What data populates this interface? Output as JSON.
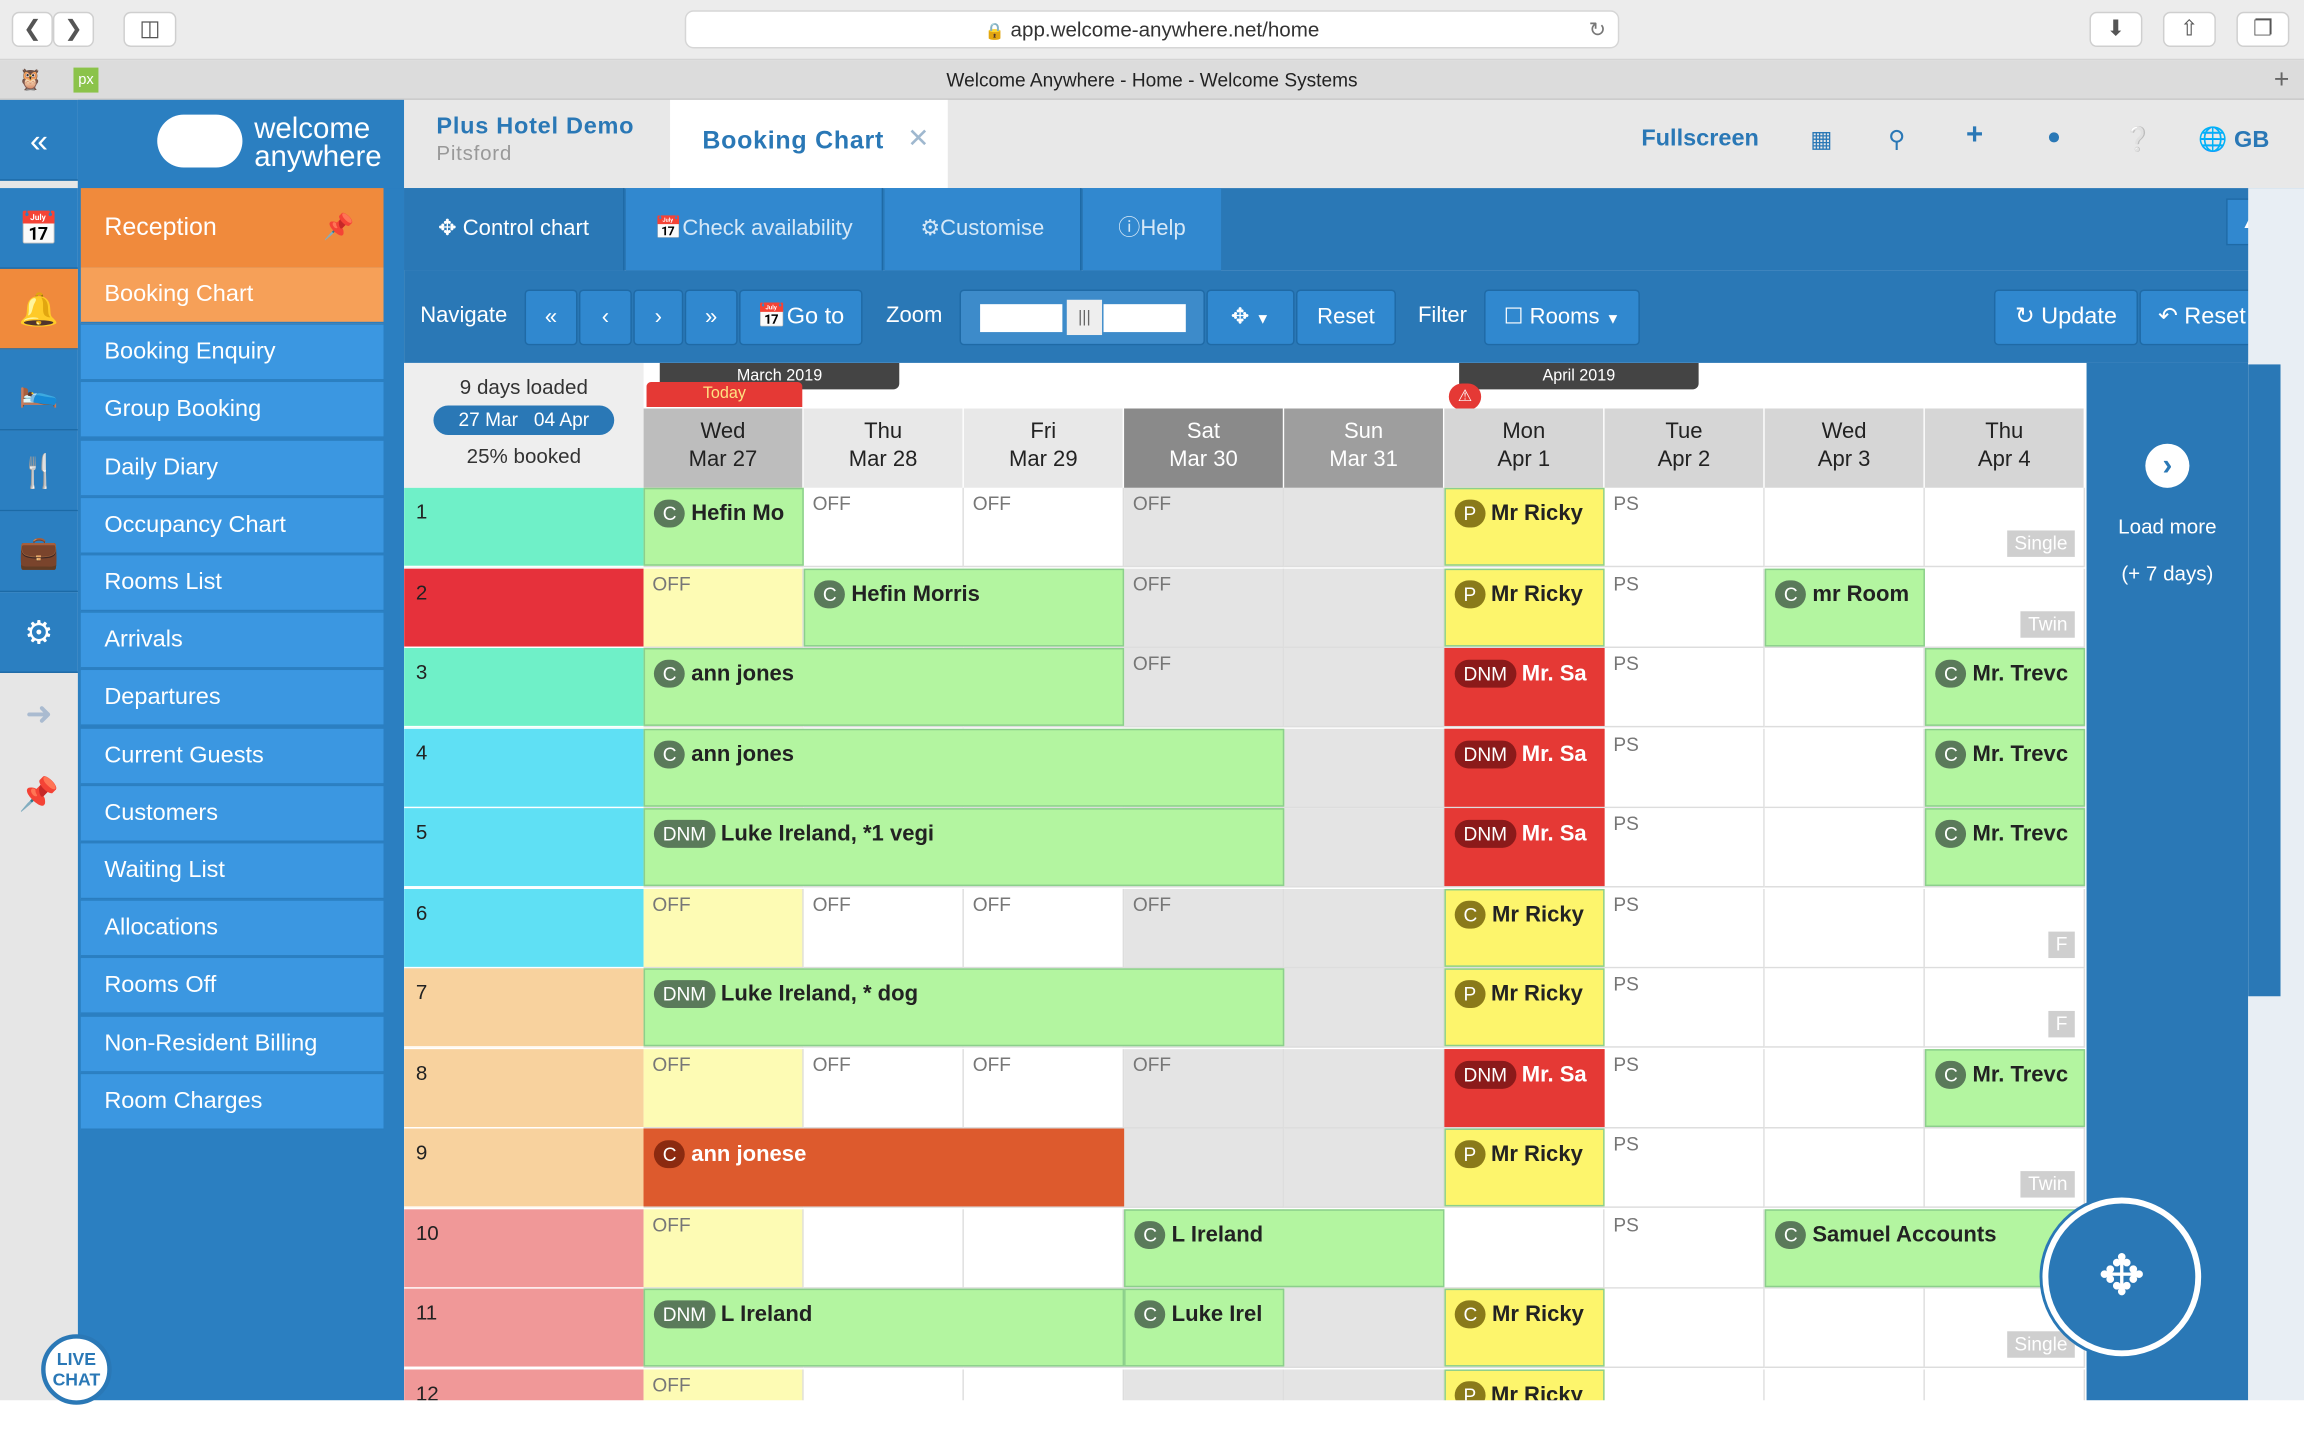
{
  "browser": {
    "url": "app.welcome-anywhere.net/home",
    "tab_title": "Welcome Anywhere - Home - Welcome Systems"
  },
  "brand": {
    "line1": "welcome",
    "line2": "anywhere"
  },
  "header": {
    "hotel_name": "Plus Hotel Demo",
    "hotel_location": "Pitsford",
    "active_tab": "Booking Chart",
    "fullscreen": "Fullscreen",
    "locale": "GB"
  },
  "subnav": {
    "control_chart": "Control chart",
    "check_availability": "Check availability",
    "customise": "Customise",
    "help": "Help"
  },
  "navbar": {
    "navigate": "Navigate",
    "goto": "Go to",
    "zoom": "Zoom",
    "reset": "Reset",
    "filter": "Filter",
    "rooms": "Rooms",
    "update": "Update",
    "reset2": "Reset"
  },
  "sidebar": {
    "section": "Reception",
    "items": [
      "Booking Chart",
      "Booking Enquiry",
      "Group Booking",
      "Daily Diary",
      "Occupancy Chart",
      "Rooms List",
      "Arrivals",
      "Departures",
      "Current Guests",
      "Customers",
      "Waiting List",
      "Allocations",
      "Rooms Off",
      "Non-Resident Billing",
      "Room Charges"
    ]
  },
  "summary": {
    "days_loaded": "9 days loaded",
    "range_start": "27 Mar",
    "range_end": "04 Apr",
    "booked": "25% booked"
  },
  "months": {
    "march": "March 2019",
    "april": "April 2019",
    "today": "Today"
  },
  "days": [
    {
      "d": "Wed",
      "date": "Mar 27"
    },
    {
      "d": "Thu",
      "date": "Mar 28"
    },
    {
      "d": "Fri",
      "date": "Mar 29"
    },
    {
      "d": "Sat",
      "date": "Mar 30"
    },
    {
      "d": "Sun",
      "date": "Mar 31"
    },
    {
      "d": "Mon",
      "date": "Apr 1"
    },
    {
      "d": "Tue",
      "date": "Apr 2"
    },
    {
      "d": "Wed",
      "date": "Apr 3"
    },
    {
      "d": "Thu",
      "date": "Apr 4"
    }
  ],
  "rooms": [
    "1",
    "2",
    "3",
    "4",
    "5",
    "6",
    "7",
    "8",
    "9",
    "10",
    "11",
    "12"
  ],
  "room_colors": [
    "#6ff0c8",
    "#e6313b",
    "#6ff0c8",
    "#5fe0f4",
    "#5fe0f4",
    "#5fe0f4",
    "#f8d29e",
    "#f8d29e",
    "#f8d29e",
    "#f09898",
    "#f09898",
    "#f09898"
  ],
  "labels": {
    "off": "OFF",
    "ps": "PS",
    "single": "Single",
    "twin": "Twin",
    "f": "F",
    "load_more": "Load more",
    "plus_days": "(+ 7 days)",
    "live_chat_1": "LIVE",
    "live_chat_2": "CHAT"
  },
  "bookings": [
    {
      "badge": "C",
      "name": "Hefin Mo"
    },
    {
      "badge": "P",
      "name": "Mr Ricky"
    },
    {
      "badge": "C",
      "name": "Hefin Morris"
    },
    {
      "badge": "C",
      "name": "mr Room"
    },
    {
      "badge": "C",
      "name": "ann jones"
    },
    {
      "badge": "DNM",
      "name": "Mr. Sa"
    },
    {
      "badge": "C",
      "name": "Mr. Trevc"
    },
    {
      "badge": "DNM",
      "name": "Luke Ireland, *1 vegi"
    },
    {
      "badge": "DNM",
      "name": "Luke Ireland, * dog"
    },
    {
      "badge": "C",
      "name": "ann jonese"
    },
    {
      "badge": "C",
      "name": "L Ireland"
    },
    {
      "badge": "C",
      "name": "Samuel Accounts"
    },
    {
      "badge": "DNM",
      "name": "L Ireland"
    },
    {
      "badge": "C",
      "name": "Luke Irel"
    },
    {
      "badge": "C",
      "name": "Mr Ricky"
    }
  ]
}
